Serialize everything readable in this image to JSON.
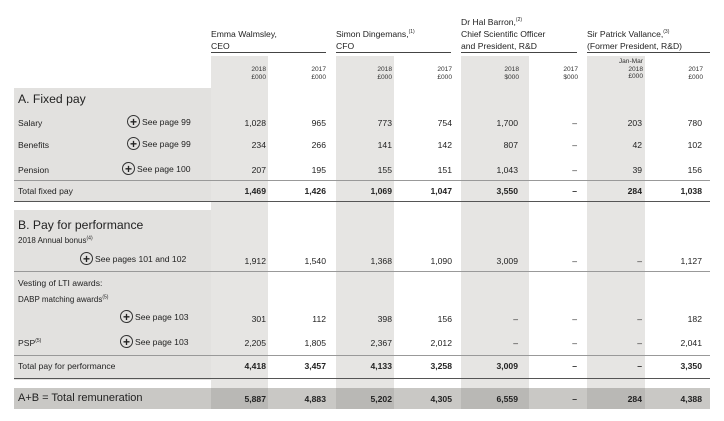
{
  "columns": [
    {
      "name": "Emma Walmsley,",
      "sup": "",
      "role": "CEO",
      "role2": ""
    },
    {
      "name": "Simon Dingemans,",
      "sup": "(1)",
      "role": "CFO",
      "role2": ""
    },
    {
      "name": "Dr Hal Barron,",
      "sup": "(2)",
      "role": "Chief Scientific Officer",
      "role2": "and President, R&D"
    },
    {
      "name": "Sir Patrick Vallance,",
      "sup": "(3)",
      "role": "(Former President, R&D)",
      "role2": ""
    }
  ],
  "year_heads": [
    {
      "pre": "",
      "year": "2018",
      "unit": "£000"
    },
    {
      "pre": "",
      "year": "2017",
      "unit": "£000"
    },
    {
      "pre": "",
      "year": "2018",
      "unit": "£000"
    },
    {
      "pre": "",
      "year": "2017",
      "unit": "£000"
    },
    {
      "pre": "",
      "year": "2018",
      "unit": "$000"
    },
    {
      "pre": "",
      "year": "2017",
      "unit": "$000"
    },
    {
      "pre": "Jan-Mar",
      "year": "2018",
      "unit": "£000"
    },
    {
      "pre": "",
      "year": "2017",
      "unit": "£000"
    }
  ],
  "sections": {
    "fixed": "A. Fixed pay",
    "performance": "B. Pay for performance",
    "total": "A+B = Total remuneration"
  },
  "rows": {
    "salary": {
      "label": "Salary",
      "ref": "See page 99",
      "values": [
        "1,028",
        "965",
        "773",
        "754",
        "1,700",
        "–",
        "203",
        "780"
      ]
    },
    "benefits": {
      "label": "Benefits",
      "ref": "See page 99",
      "values": [
        "234",
        "266",
        "141",
        "142",
        "807",
        "–",
        "42",
        "102"
      ]
    },
    "pension": {
      "label": "Pension",
      "ref": "See page 100",
      "values": [
        "207",
        "195",
        "155",
        "151",
        "1,043",
        "–",
        "39",
        "156"
      ]
    },
    "total_fixed": {
      "label": "Total fixed pay",
      "values": [
        "1,469",
        "1,426",
        "1,069",
        "1,047",
        "3,550",
        "–",
        "284",
        "1,038"
      ]
    },
    "bonus_title": {
      "label": "2018 Annual bonus",
      "sup": "(4)"
    },
    "bonus": {
      "ref": "See pages 101 and 102",
      "values": [
        "1,912",
        "1,540",
        "1,368",
        "1,090",
        "3,009",
        "–",
        "–",
        "1,127"
      ]
    },
    "lti_title": {
      "label": "Vesting of LTI awards:"
    },
    "dabp_title": {
      "label": "DABP matching awards",
      "sup": "(5)"
    },
    "dabp": {
      "ref": "See page 103",
      "values": [
        "301",
        "112",
        "398",
        "156",
        "–",
        "–",
        "–",
        "182"
      ]
    },
    "psp": {
      "label": "PSP",
      "sup": "(5)",
      "ref": "See page 103",
      "values": [
        "2,205",
        "1,805",
        "2,367",
        "2,012",
        "–",
        "–",
        "–",
        "2,041"
      ]
    },
    "total_perf": {
      "label": "Total pay for performance",
      "values": [
        "4,418",
        "3,457",
        "4,133",
        "3,258",
        "3,009",
        "–",
        "–",
        "3,350"
      ]
    },
    "total": {
      "values": [
        "5,887",
        "4,883",
        "5,202",
        "4,305",
        "6,559",
        "–",
        "284",
        "4,388"
      ]
    }
  }
}
